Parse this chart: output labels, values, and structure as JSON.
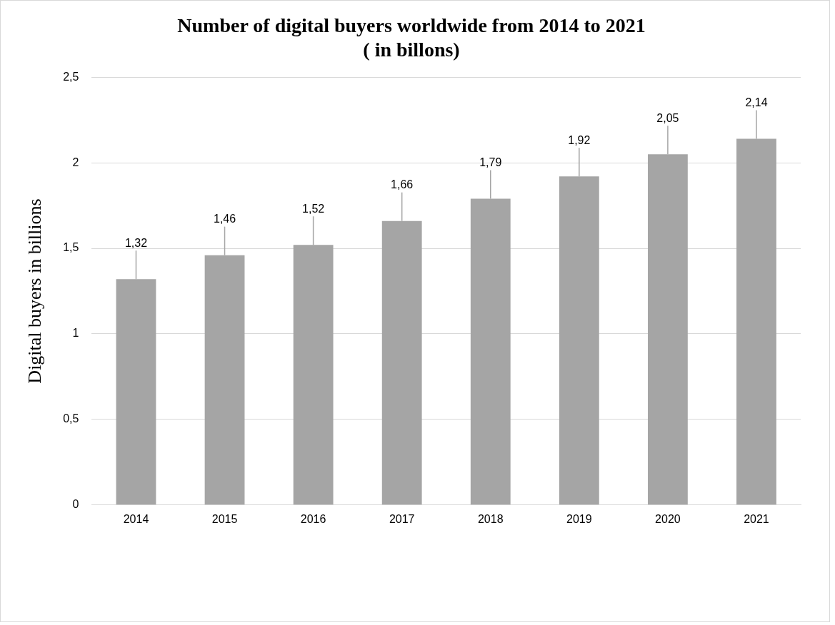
{
  "chart_data": {
    "type": "bar",
    "title": [
      "Number of digital buyers worldwide from 2014 to 2021",
      "( in billons)"
    ],
    "ylabel": "Digital buyers in billions",
    "categories": [
      "2014",
      "2015",
      "2016",
      "2017",
      "2018",
      "2019",
      "2020",
      "2021"
    ],
    "values": [
      1.32,
      1.46,
      1.52,
      1.66,
      1.79,
      1.92,
      2.05,
      2.14
    ],
    "value_labels": [
      "1,32",
      "1,46",
      "1,52",
      "1,66",
      "1,79",
      "1,92",
      "2,05",
      "2,14"
    ],
    "color": "#a5a5a5",
    "ylim": [
      0,
      2.5
    ],
    "yticks": [
      0,
      {
        "value": 0.5,
        "label": "0,5"
      },
      1,
      {
        "value": 1.5,
        "label": "1,5"
      },
      2,
      {
        "value": 2.5,
        "label": "2,5"
      }
    ],
    "grid": "y",
    "legend": false
  }
}
